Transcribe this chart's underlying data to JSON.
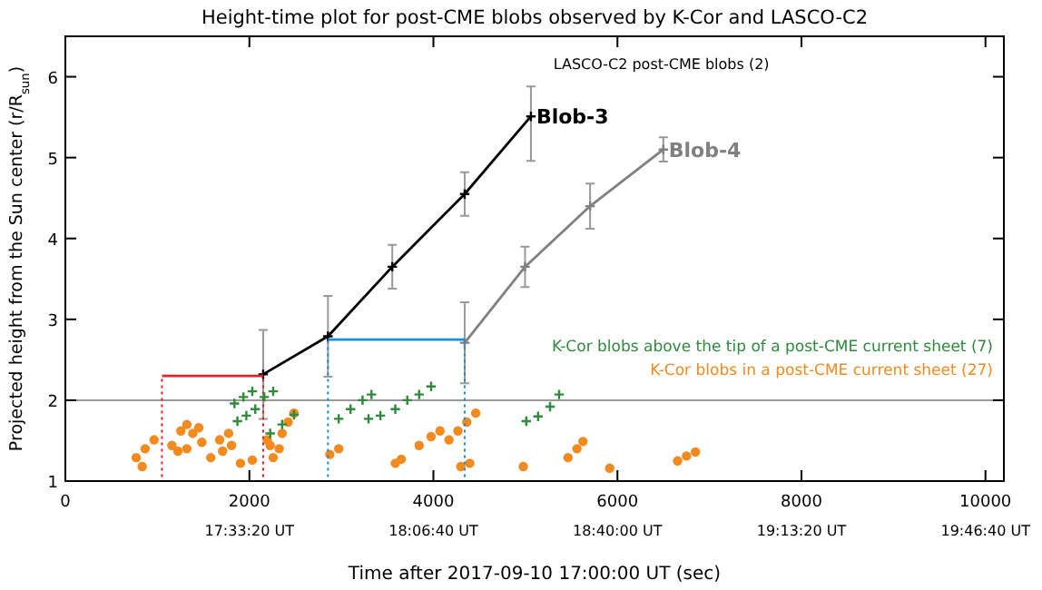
{
  "chart_data": {
    "type": "scatter",
    "title": "Height-time plot for post-CME blobs observed by K-Cor and LASCO-C2",
    "xlabel": "Time after 2017-09-10 17:00:00 UT (sec)",
    "ylabel": "Projected height from the Sun center (r/R$_{sun}$)",
    "xlim": [
      0,
      10200
    ],
    "xticks": [
      0,
      2000,
      4000,
      6000,
      8000,
      10000
    ],
    "ylim": [
      1,
      6.5
    ],
    "yticks": [
      1,
      2,
      3,
      4,
      5,
      6
    ],
    "annotations": [
      "LASCO-C2 post-CME blobs (2)",
      "17:33:20 UT",
      "18:06:40 UT",
      "18:40:00 UT",
      "19:13:20 UT",
      "19:46:40 UT"
    ],
    "ref_lines": [
      {
        "axis": "y",
        "value": 2,
        "color": "#9a9a9a"
      }
    ],
    "legend": "right",
    "series": [
      {
        "name": "Blob-3",
        "type": "line",
        "color": "#000000",
        "marker": "cross",
        "x": [
          2150,
          2854,
          3553,
          4340,
          5060
        ],
        "values": [
          2.32,
          2.79,
          3.65,
          4.55,
          5.51
        ],
        "errors": [
          0.55,
          0.5,
          0.27,
          0.27,
          [
            4.96,
            5.88
          ]
        ]
      },
      {
        "name": "Blob-4",
        "type": "line",
        "color": "#808080",
        "marker": "cross",
        "x": [
          4340,
          4996,
          5703,
          6499
        ],
        "values": [
          2.71,
          3.65,
          4.4,
          5.1
        ],
        "errors": [
          0.5,
          0.25,
          0.28,
          0.15
        ]
      },
      {
        "type": "line",
        "color": "#e8202a",
        "marker": "none",
        "line_style": "solid",
        "x": [
          1050,
          2150
        ],
        "values": [
          2.3,
          2.3
        ]
      },
      {
        "type": "line",
        "color": "#e8202a",
        "marker": "none",
        "line_style": "dotted",
        "x": [
          1050,
          1050
        ],
        "values": [
          1.05,
          2.3
        ]
      },
      {
        "type": "line",
        "color": "#e8202a",
        "marker": "none",
        "line_style": "dotted",
        "x": [
          2150,
          2150
        ],
        "values": [
          1.05,
          2.3
        ]
      },
      {
        "type": "line",
        "color": "#1a8fd8",
        "marker": "none",
        "line_style": "solid",
        "x": [
          2854,
          4340
        ],
        "values": [
          2.75,
          2.75
        ]
      },
      {
        "type": "line",
        "color": "#1a8fd8",
        "marker": "none",
        "line_style": "dotted",
        "x": [
          2854,
          2854
        ],
        "values": [
          1.05,
          2.75
        ]
      },
      {
        "type": "line",
        "color": "#1a8fd8",
        "marker": "none",
        "line_style": "dotted",
        "x": [
          4340,
          4340
        ],
        "values": [
          1.05,
          2.75
        ]
      },
      {
        "name": "K-Cor blobs above the tip of a post-CME current sheet (7)",
        "color": "#2e8b3a",
        "marker": "cross",
        "x": [
          1838,
          1935,
          2032,
          1870,
          1967,
          2064,
          2162,
          2259,
          2226,
          2356,
          2485,
          2971,
          3100,
          3230,
          3327,
          3295,
          3424,
          3586,
          3716,
          3845,
          3975,
          5009,
          5138,
          5268,
          5366
        ],
        "values": [
          1.96,
          2.04,
          2.11,
          1.74,
          1.81,
          1.89,
          2.04,
          2.11,
          1.59,
          1.7,
          1.82,
          1.77,
          1.89,
          2.0,
          2.07,
          1.77,
          1.81,
          1.89,
          2.0,
          2.07,
          2.17,
          1.74,
          1.8,
          1.92,
          2.07
        ]
      },
      {
        "name": "K-Cor blobs in a post-CME current sheet (27)",
        "color": "#f28a1e",
        "marker": "circle",
        "x": [
          770,
          867,
          964,
          835,
          1158,
          1255,
          1320,
          1385,
          1483,
          1450,
          1223,
          1580,
          1320,
          1709,
          1806,
          1903,
          2032,
          1677,
          1774,
          2194,
          2259,
          2356,
          2421,
          2485,
          2324,
          2226,
          2874,
          2971,
          3586,
          3651,
          3845,
          3975,
          4072,
          4169,
          4266,
          4363,
          4460,
          4298,
          4395,
          4977,
          5463,
          5560,
          5625,
          5916,
          6654,
          6751,
          6848
        ],
        "values": [
          1.29,
          1.4,
          1.51,
          1.18,
          1.44,
          1.62,
          1.7,
          1.59,
          1.48,
          1.66,
          1.37,
          1.29,
          1.4,
          1.37,
          1.44,
          1.22,
          1.26,
          1.51,
          1.59,
          1.51,
          1.29,
          1.59,
          1.73,
          1.84,
          1.4,
          1.44,
          1.33,
          1.4,
          1.22,
          1.27,
          1.44,
          1.55,
          1.62,
          1.51,
          1.62,
          1.73,
          1.84,
          1.18,
          1.22,
          1.18,
          1.29,
          1.4,
          1.49,
          1.16,
          1.25,
          1.31,
          1.36
        ]
      }
    ]
  }
}
